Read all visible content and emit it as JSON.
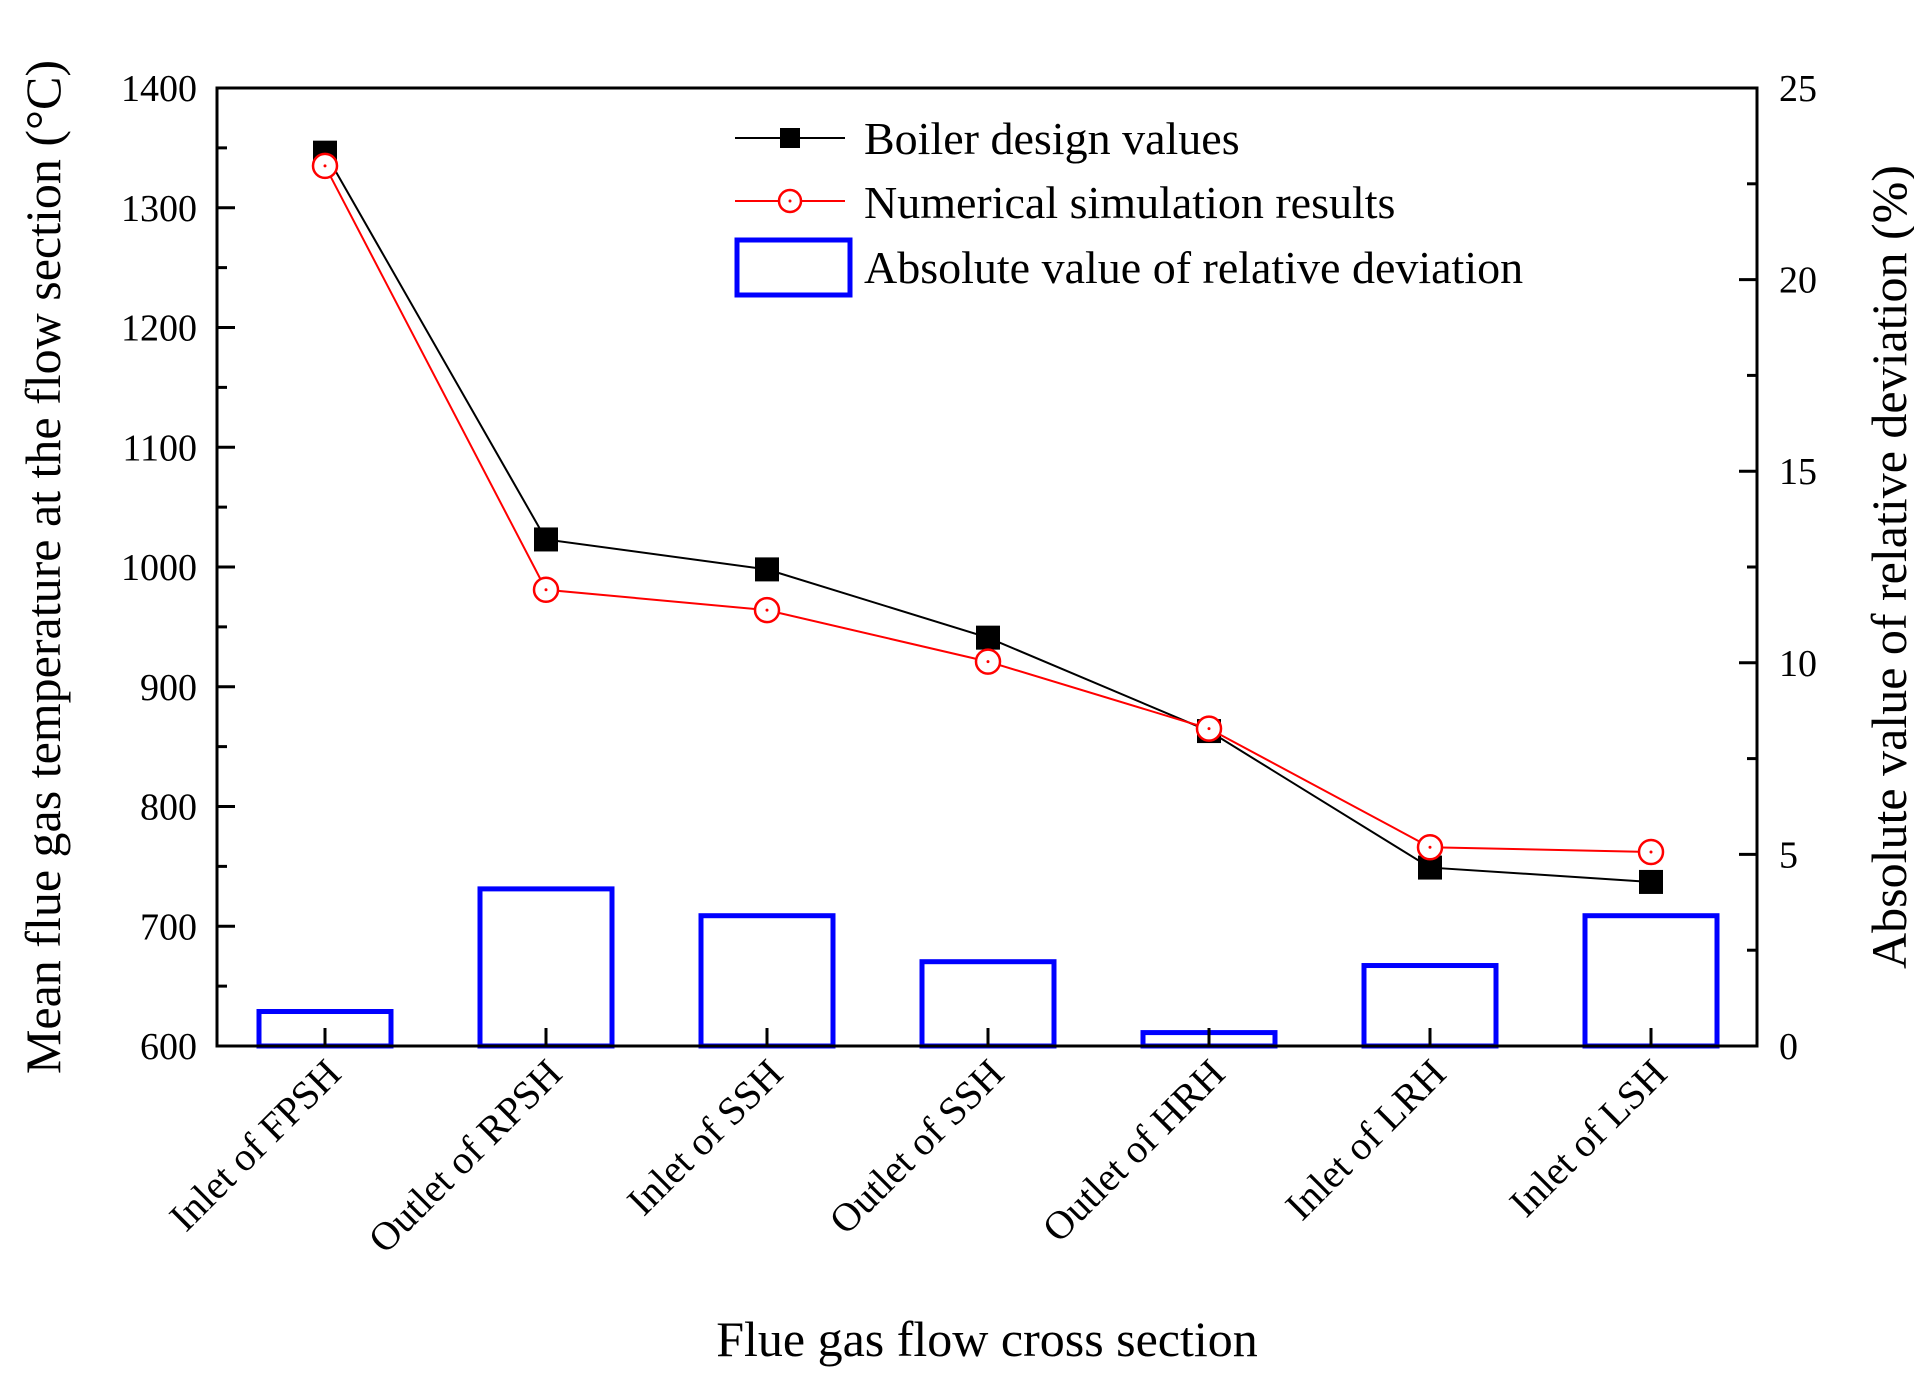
{
  "chart_data": {
    "type": "bar+line",
    "title": "",
    "xlabel": "Flue gas flow cross section",
    "ylabel": "Mean flue gas temperature at the flow section (°C)",
    "y2label": "Absolute value of relative deviation (%)",
    "categories": [
      "Inlet of FPSH",
      "Outlet of RPSH",
      "Inlet of SSH",
      "Outlet of SSH",
      "Outlet of HRH",
      "Inlet of LRH",
      "Inlet of LSH"
    ],
    "ylim": [
      600,
      1400
    ],
    "yticks": [
      600,
      700,
      800,
      900,
      1000,
      1100,
      1200,
      1300,
      1400
    ],
    "y2lim": [
      0,
      25
    ],
    "y2ticks": [
      0,
      5,
      10,
      15,
      20,
      25
    ],
    "series": [
      {
        "name": "Boiler design values",
        "type": "line",
        "axis": "left",
        "marker": "square",
        "color": "#000000",
        "values": [
          1346,
          1023,
          998,
          941,
          863,
          749,
          737
        ]
      },
      {
        "name": "Numerical simulation results",
        "type": "line",
        "axis": "left",
        "marker": "open-circle",
        "color": "#ff0000",
        "values": [
          1335,
          981,
          964,
          921,
          865,
          766,
          762
        ]
      },
      {
        "name": "Absolute value of relative deviation",
        "type": "bar",
        "axis": "right",
        "color": "#0000ff",
        "values": [
          0.9,
          4.1,
          3.4,
          2.2,
          0.35,
          2.1,
          3.4
        ]
      }
    ],
    "legend": "top-center"
  }
}
